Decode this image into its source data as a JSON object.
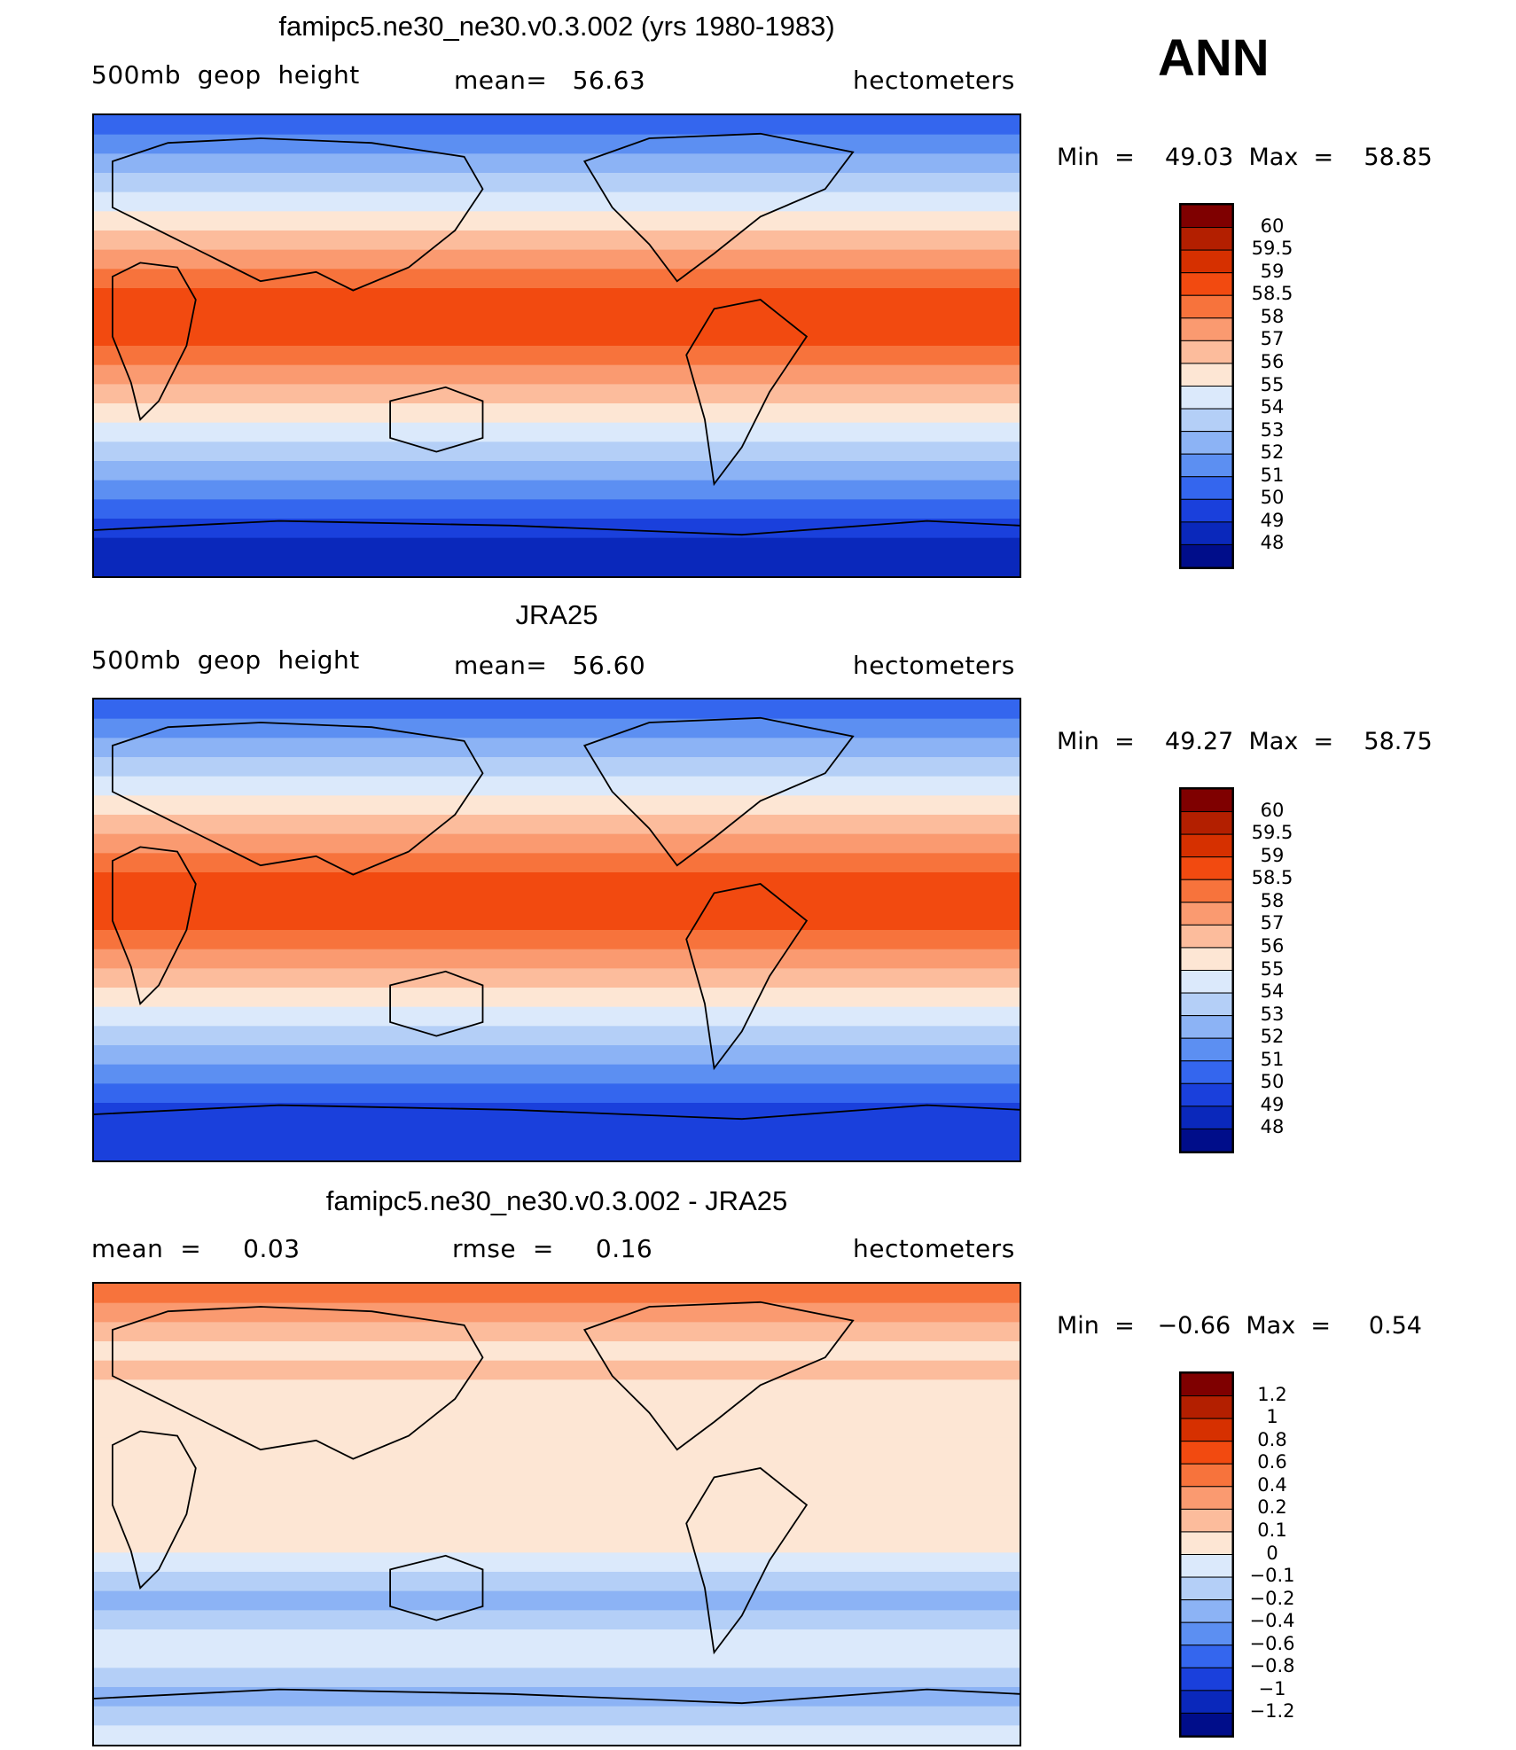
{
  "season": "ANN",
  "panels": [
    {
      "title": "famipc5.ne30_ne30.v0.3.002 (yrs 1980-1983)",
      "left": "500mb  geop  height",
      "center": "mean=   56.63",
      "right": "hectometers",
      "minmax": "Min  =    49.03  Max  =    58.85",
      "colorbar": {
        "labels": [
          "60",
          "59.5",
          "59",
          "58.5",
          "58",
          "57",
          "56",
          "55",
          "54",
          "53",
          "52",
          "51",
          "50",
          "49",
          "48"
        ],
        "colors": [
          "#7f0000",
          "#b31f00",
          "#d63000",
          "#f24a10",
          "#f7733c",
          "#fa9a70",
          "#fcbc9c",
          "#fde6d4",
          "#dbe9fb",
          "#b4cff7",
          "#8cb3f5",
          "#5c8ff2",
          "#3466ee",
          "#1a40dc",
          "#0a28bb",
          "#000d8a"
        ]
      },
      "bands": [
        "#3466ee",
        "#5c8ff2",
        "#8cb3f5",
        "#b4cff7",
        "#dbe9fb",
        "#fde6d4",
        "#fcbc9c",
        "#fa9a70",
        "#f7733c",
        "#f24a10",
        "#f24a10",
        "#f24a10",
        "#f7733c",
        "#fa9a70",
        "#fcbc9c",
        "#fde6d4",
        "#dbe9fb",
        "#b4cff7",
        "#8cb3f5",
        "#5c8ff2",
        "#3466ee",
        "#1a40dc",
        "#0a28bb",
        "#0a28bb"
      ]
    },
    {
      "title": "JRA25",
      "left": "500mb  geop  height",
      "center": "mean=   56.60",
      "right": "hectometers",
      "minmax": "Min  =    49.27  Max  =    58.75",
      "colorbar": {
        "labels": [
          "60",
          "59.5",
          "59",
          "58.5",
          "58",
          "57",
          "56",
          "55",
          "54",
          "53",
          "52",
          "51",
          "50",
          "49",
          "48"
        ],
        "colors": [
          "#7f0000",
          "#b31f00",
          "#d63000",
          "#f24a10",
          "#f7733c",
          "#fa9a70",
          "#fcbc9c",
          "#fde6d4",
          "#dbe9fb",
          "#b4cff7",
          "#8cb3f5",
          "#5c8ff2",
          "#3466ee",
          "#1a40dc",
          "#0a28bb",
          "#000d8a"
        ]
      },
      "bands": [
        "#3466ee",
        "#5c8ff2",
        "#8cb3f5",
        "#b4cff7",
        "#dbe9fb",
        "#fde6d4",
        "#fcbc9c",
        "#fa9a70",
        "#f7733c",
        "#f24a10",
        "#f24a10",
        "#f24a10",
        "#f7733c",
        "#fa9a70",
        "#fcbc9c",
        "#fde6d4",
        "#dbe9fb",
        "#b4cff7",
        "#8cb3f5",
        "#5c8ff2",
        "#3466ee",
        "#1a40dc",
        "#1a40dc",
        "#1a40dc"
      ]
    },
    {
      "title": "famipc5.ne30_ne30.v0.3.002 - JRA25",
      "left": "mean  =     0.03",
      "center": "rmse  =     0.16",
      "right": "hectometers",
      "minmax": "Min  =   −0.66  Max  =     0.54",
      "colorbar": {
        "labels": [
          "1.2",
          "1",
          "0.8",
          "0.6",
          "0.4",
          "0.2",
          "0.1",
          "0",
          "−0.1",
          "−0.2",
          "−0.4",
          "−0.6",
          "−0.8",
          "−1",
          "−1.2"
        ],
        "colors": [
          "#7f0000",
          "#b31f00",
          "#d63000",
          "#f24a10",
          "#f7733c",
          "#fa9a70",
          "#fcbc9c",
          "#fde6d4",
          "#dbe9fb",
          "#b4cff7",
          "#8cb3f5",
          "#5c8ff2",
          "#3466ee",
          "#1a40dc",
          "#0a28bb",
          "#000d8a"
        ]
      },
      "bands": [
        "#f7733c",
        "#fa9a70",
        "#fcbc9c",
        "#fde6d4",
        "#fcbc9c",
        "#fde6d4",
        "#fde6d4",
        "#fde6d4",
        "#fde6d4",
        "#fde6d4",
        "#fde6d4",
        "#fde6d4",
        "#fde6d4",
        "#fde6d4",
        "#dbe9fb",
        "#b4cff7",
        "#8cb3f5",
        "#b4cff7",
        "#dbe9fb",
        "#dbe9fb",
        "#b4cff7",
        "#8cb3f5",
        "#b4cff7",
        "#dbe9fb"
      ]
    }
  ]
}
